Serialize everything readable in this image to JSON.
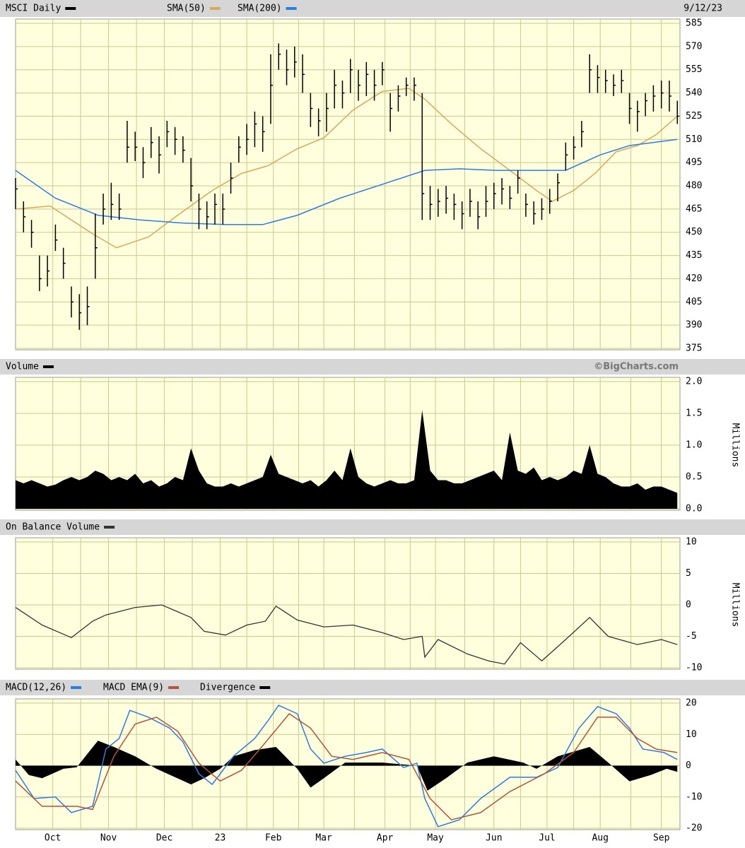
{
  "chart_data": [
    {
      "type": "ohlc",
      "title": "MSCI Daily",
      "date": "9/12/23",
      "color": "#000000",
      "xlim": [
        0,
        250
      ],
      "ylim": [
        375,
        585
      ],
      "yticks": [
        375,
        390,
        405,
        420,
        435,
        450,
        465,
        480,
        495,
        510,
        525,
        540,
        555,
        570,
        585
      ],
      "x": [
        0,
        3,
        6,
        9,
        12,
        15,
        18,
        21,
        24,
        27,
        30,
        33,
        36,
        39,
        42,
        45,
        48,
        51,
        54,
        57,
        60,
        63,
        66,
        69,
        72,
        75,
        78,
        81,
        84,
        87,
        90,
        93,
        96,
        99,
        102,
        105,
        108,
        111,
        114,
        117,
        120,
        123,
        126,
        129,
        132,
        135,
        138,
        141,
        144,
        147,
        150,
        153,
        156,
        159,
        162,
        165,
        168,
        171,
        174,
        177,
        180,
        183,
        186,
        189,
        192,
        195,
        198,
        201,
        204,
        207,
        210,
        213,
        216,
        219,
        222,
        225,
        228,
        231,
        234,
        237,
        240,
        243,
        246,
        249
      ],
      "high": [
        485,
        470,
        458,
        435,
        435,
        455,
        440,
        415,
        410,
        415,
        462,
        475,
        482,
        475,
        522,
        515,
        505,
        518,
        512,
        522,
        518,
        512,
        498,
        475,
        470,
        475,
        475,
        495,
        512,
        520,
        528,
        525,
        565,
        572,
        568,
        570,
        565,
        540,
        530,
        540,
        555,
        548,
        562,
        555,
        560,
        555,
        560,
        540,
        545,
        550,
        550,
        540,
        480,
        478,
        480,
        475,
        470,
        478,
        470,
        480,
        482,
        485,
        480,
        490,
        475,
        470,
        472,
        478,
        488,
        508,
        512,
        522,
        565,
        558,
        555,
        552,
        555,
        540,
        535,
        540,
        545,
        548,
        548,
        535
      ],
      "low": [
        465,
        450,
        440,
        412,
        415,
        438,
        420,
        395,
        387,
        390,
        420,
        455,
        458,
        458,
        495,
        496,
        485,
        498,
        488,
        505,
        500,
        495,
        470,
        452,
        452,
        455,
        455,
        475,
        495,
        500,
        505,
        502,
        520,
        555,
        545,
        550,
        540,
        518,
        512,
        515,
        530,
        530,
        540,
        535,
        538,
        535,
        545,
        515,
        528,
        538,
        535,
        458,
        458,
        460,
        462,
        458,
        452,
        460,
        452,
        460,
        465,
        468,
        465,
        475,
        460,
        455,
        458,
        462,
        470,
        490,
        497,
        505,
        540,
        540,
        540,
        538,
        540,
        520,
        515,
        525,
        528,
        530,
        528,
        520
      ],
      "close": [
        478,
        460,
        450,
        420,
        425,
        445,
        430,
        405,
        398,
        402,
        440,
        465,
        468,
        465,
        505,
        505,
        495,
        508,
        500,
        515,
        510,
        503,
        480,
        465,
        460,
        468,
        465,
        485,
        505,
        510,
        520,
        515,
        545,
        565,
        555,
        560,
        552,
        530,
        522,
        530,
        545,
        540,
        555,
        545,
        552,
        545,
        555,
        530,
        538,
        545,
        545,
        475,
        468,
        470,
        472,
        468,
        462,
        470,
        460,
        470,
        475,
        478,
        472,
        485,
        468,
        462,
        465,
        470,
        482,
        500,
        505,
        515,
        555,
        550,
        548,
        545,
        548,
        530,
        528,
        535,
        538,
        540,
        538,
        525
      ],
      "series": [
        {
          "name": "SMA(50)",
          "color": "#d9a85b",
          "type": "line",
          "x": [
            0,
            13,
            29,
            38,
            50,
            61,
            74,
            85,
            95,
            106,
            116,
            127,
            138,
            148,
            154,
            164,
            175,
            186,
            196,
            202,
            210,
            218,
            226,
            234,
            241,
            249
          ],
          "values": [
            465,
            467,
            449,
            440,
            447,
            461,
            477,
            488,
            493,
            504,
            511,
            529,
            541,
            543,
            536,
            520,
            504,
            490,
            477,
            470,
            477,
            488,
            502,
            506,
            513,
            525
          ]
        },
        {
          "name": "SMA(200)",
          "color": "#2a7de1",
          "type": "line",
          "x": [
            0,
            15,
            31,
            47,
            63,
            79,
            93,
            106,
            122,
            138,
            154,
            167,
            181,
            196,
            207,
            220,
            231,
            249
          ],
          "values": [
            490,
            472,
            461,
            458,
            456,
            455,
            455,
            461,
            472,
            481,
            490,
            491,
            490,
            490,
            490,
            500,
            506,
            510
          ]
        }
      ]
    },
    {
      "type": "area",
      "title": "Volume",
      "credit": "©BigCharts.com",
      "y_label": "Millions",
      "color": "#000000",
      "xlim": [
        0,
        250
      ],
      "ylim": [
        0,
        2
      ],
      "yticks": [
        {
          "value": 0,
          "label": "0.0"
        },
        0.5,
        {
          "value": 1,
          "label": "1.0"
        },
        1.5,
        {
          "value": 2,
          "label": "2.0"
        }
      ],
      "x": [
        0,
        3,
        6,
        9,
        12,
        15,
        18,
        21,
        24,
        27,
        30,
        33,
        36,
        39,
        42,
        45,
        48,
        51,
        54,
        57,
        60,
        63,
        66,
        69,
        72,
        75,
        78,
        81,
        84,
        87,
        90,
        93,
        96,
        99,
        102,
        105,
        108,
        111,
        114,
        117,
        120,
        123,
        126,
        129,
        132,
        135,
        138,
        141,
        144,
        147,
        150,
        153,
        156,
        159,
        162,
        165,
        168,
        171,
        174,
        177,
        180,
        183,
        186,
        189,
        192,
        195,
        198,
        201,
        204,
        207,
        210,
        213,
        216,
        219,
        222,
        225,
        228,
        231,
        234,
        237,
        240,
        243,
        246,
        249
      ],
      "values": [
        0.45,
        0.4,
        0.45,
        0.4,
        0.35,
        0.38,
        0.45,
        0.5,
        0.45,
        0.5,
        0.6,
        0.55,
        0.45,
        0.5,
        0.45,
        0.55,
        0.4,
        0.45,
        0.35,
        0.4,
        0.5,
        0.45,
        0.95,
        0.6,
        0.4,
        0.35,
        0.35,
        0.4,
        0.35,
        0.4,
        0.45,
        0.5,
        0.85,
        0.55,
        0.5,
        0.45,
        0.4,
        0.45,
        0.35,
        0.45,
        0.6,
        0.45,
        0.95,
        0.5,
        0.4,
        0.35,
        0.4,
        0.45,
        0.4,
        0.4,
        0.45,
        1.55,
        0.6,
        0.45,
        0.45,
        0.4,
        0.4,
        0.45,
        0.5,
        0.55,
        0.6,
        0.45,
        1.2,
        0.6,
        0.55,
        0.65,
        0.45,
        0.5,
        0.45,
        0.5,
        0.6,
        0.55,
        1.0,
        0.55,
        0.5,
        0.4,
        0.35,
        0.35,
        0.4,
        0.3,
        0.35,
        0.35,
        0.3,
        0.25
      ]
    },
    {
      "type": "line",
      "title": "On Balance Volume",
      "y_label": "Millions",
      "color": "#333333",
      "xlim": [
        0,
        250
      ],
      "ylim": [
        -10,
        10
      ],
      "yticks": [
        -10,
        -5,
        0,
        5,
        10
      ],
      "x": [
        0,
        10,
        21,
        29,
        34,
        45,
        55,
        66,
        71,
        79,
        87,
        94,
        98,
        106,
        116,
        127,
        138,
        146,
        153,
        154,
        159,
        170,
        178,
        184,
        190,
        198,
        207,
        216,
        223,
        234,
        243,
        249
      ],
      "values": [
        -0.4,
        -3.2,
        -5.2,
        -2.6,
        -1.6,
        -0.4,
        0,
        -2,
        -4.2,
        -4.8,
        -3.2,
        -2.6,
        -0.2,
        -2.4,
        -3.5,
        -3.2,
        -4.4,
        -5.5,
        -5,
        -8.3,
        -5.5,
        -7.8,
        -8.9,
        -9.4,
        -6,
        -8.9,
        -5.5,
        -2,
        -5,
        -6.3,
        -5.5,
        -6.3
      ]
    },
    {
      "type": "macd",
      "xlim": [
        0,
        250
      ],
      "ylim": [
        -20,
        20
      ],
      "yticks": [
        -20,
        -10,
        0,
        10,
        20
      ],
      "xticks": [
        {
          "value": 14,
          "label": "Oct"
        },
        {
          "value": 35,
          "label": "Nov"
        },
        {
          "value": 56,
          "label": "Dec"
        },
        {
          "value": 77,
          "label": "23"
        },
        {
          "value": 97,
          "label": "Feb"
        },
        {
          "value": 116,
          "label": "Mar"
        },
        {
          "value": 139,
          "label": "Apr"
        },
        {
          "value": 158,
          "label": "May"
        },
        {
          "value": 180,
          "label": "Jun"
        },
        {
          "value": 200,
          "label": "Jul"
        },
        {
          "value": 220,
          "label": "Aug"
        },
        {
          "value": 243,
          "label": "Sep"
        }
      ],
      "series": [
        {
          "name": "MACD(12,26)",
          "color": "#2a7de1",
          "type": "line",
          "x": [
            0,
            7,
            15,
            21,
            29,
            34,
            39,
            43,
            50,
            58,
            63,
            69,
            74,
            82,
            90,
            95,
            99,
            106,
            111,
            116,
            124,
            132,
            138,
            146,
            151,
            154,
            159,
            167,
            175,
            186,
            196,
            204,
            212,
            219,
            226,
            231,
            236,
            244,
            249
          ],
          "values": [
            -1.5,
            -10.5,
            -10,
            -15,
            -13,
            5.3,
            8.7,
            17.7,
            15.5,
            12,
            7.6,
            -2.6,
            -6,
            3,
            8.7,
            14.4,
            19.3,
            16.6,
            5.3,
            0.8,
            3,
            4.2,
            5.3,
            -0.6,
            0.8,
            -10.5,
            -19.5,
            -17.3,
            -10.5,
            -3.7,
            -3.7,
            -0.6,
            12,
            18.9,
            16.6,
            12,
            5.3,
            4.2,
            2
          ]
        },
        {
          "name": "MACD EMA(9)",
          "color": "#b5523b",
          "type": "line",
          "x": [
            0,
            10,
            23,
            29,
            37,
            45,
            53,
            61,
            69,
            77,
            85,
            93,
            103,
            111,
            119,
            127,
            138,
            148,
            156,
            164,
            175,
            186,
            199,
            210,
            219,
            226,
            234,
            241,
            249
          ],
          "values": [
            -4.9,
            -13,
            -13,
            -14,
            3,
            13.3,
            15.5,
            11,
            0.8,
            -4.9,
            -1.5,
            6.4,
            16.6,
            12,
            3,
            2,
            4.2,
            2,
            -10.5,
            -17.3,
            -15,
            -8.3,
            -2.6,
            4.2,
            15.5,
            15.5,
            8.7,
            5.3,
            4.2
          ]
        },
        {
          "name": "Divergence",
          "color": "#000000",
          "type": "area",
          "x": [
            0,
            5,
            10,
            18,
            23,
            31,
            37,
            45,
            53,
            66,
            71,
            77,
            82,
            90,
            98,
            106,
            111,
            116,
            124,
            138,
            151,
            155,
            162,
            170,
            180,
            191,
            196,
            204,
            216,
            223,
            231,
            239,
            245,
            249
          ],
          "values": [
            2,
            -3,
            -4,
            -1,
            -0.5,
            8,
            6,
            3,
            -1,
            -6,
            -4,
            -1,
            3,
            5,
            6,
            -1,
            -7,
            -4,
            1,
            1,
            0,
            -8,
            -4,
            1,
            3,
            1,
            -1,
            3,
            6,
            1,
            -5,
            -3,
            -1,
            -2
          ]
        }
      ]
    }
  ]
}
